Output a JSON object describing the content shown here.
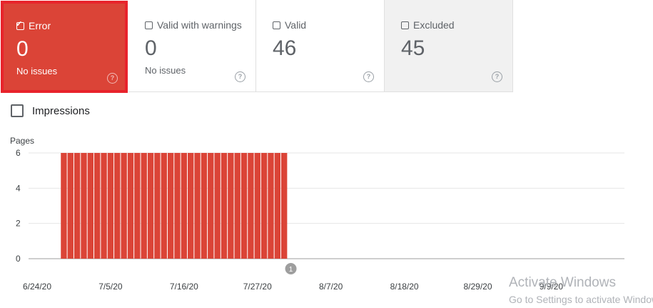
{
  "tiles": [
    {
      "key": "error",
      "label": "Error",
      "value": "0",
      "sub": "No issues",
      "checked": true
    },
    {
      "key": "warn",
      "label": "Valid with warnings",
      "value": "0",
      "sub": "No issues",
      "checked": false
    },
    {
      "key": "valid",
      "label": "Valid",
      "value": "46",
      "sub": "",
      "checked": false
    },
    {
      "key": "excl",
      "label": "Excluded",
      "value": "45",
      "sub": "",
      "checked": false
    }
  ],
  "help_glyph": "?",
  "impressions": {
    "label": "Impressions",
    "checked": false
  },
  "chart_data": {
    "type": "bar",
    "ylabel": "Pages",
    "ylim": [
      0,
      6
    ],
    "yticks": [
      "6",
      "4",
      "2",
      "0"
    ],
    "xticks": [
      "6/24/20",
      "7/5/20",
      "7/16/20",
      "7/27/20",
      "8/7/20",
      "8/18/20",
      "8/29/20",
      "9/9/20"
    ],
    "x_start": "6/24/20",
    "x_end": "9/19/20",
    "series": [
      {
        "color": "#db4437",
        "x": [
          "6/28/20",
          "6/29/20",
          "6/30/20",
          "7/1/20",
          "7/2/20",
          "7/3/20",
          "7/4/20",
          "7/5/20",
          "7/6/20",
          "7/7/20",
          "7/8/20",
          "7/9/20",
          "7/10/20",
          "7/11/20",
          "7/12/20",
          "7/13/20",
          "7/14/20",
          "7/15/20",
          "7/16/20",
          "7/17/20",
          "7/18/20",
          "7/19/20",
          "7/20/20",
          "7/21/20",
          "7/22/20",
          "7/23/20",
          "7/24/20",
          "7/25/20",
          "7/26/20",
          "7/27/20",
          "7/28/20",
          "7/29/20",
          "7/30/20",
          "7/31/20"
        ],
        "values": [
          6,
          6,
          6,
          6,
          6,
          6,
          6,
          6,
          6,
          6,
          6,
          6,
          6,
          6,
          6,
          6,
          6,
          6,
          6,
          6,
          6,
          6,
          6,
          6,
          6,
          6,
          6,
          6,
          6,
          6,
          6,
          6,
          6,
          6
        ]
      }
    ],
    "annotations": [
      {
        "x": "8/1/20",
        "text": "1"
      }
    ],
    "grid": true
  },
  "watermark": {
    "line1": "Activate Windows",
    "line2": "Go to Settings to activate Windows."
  }
}
